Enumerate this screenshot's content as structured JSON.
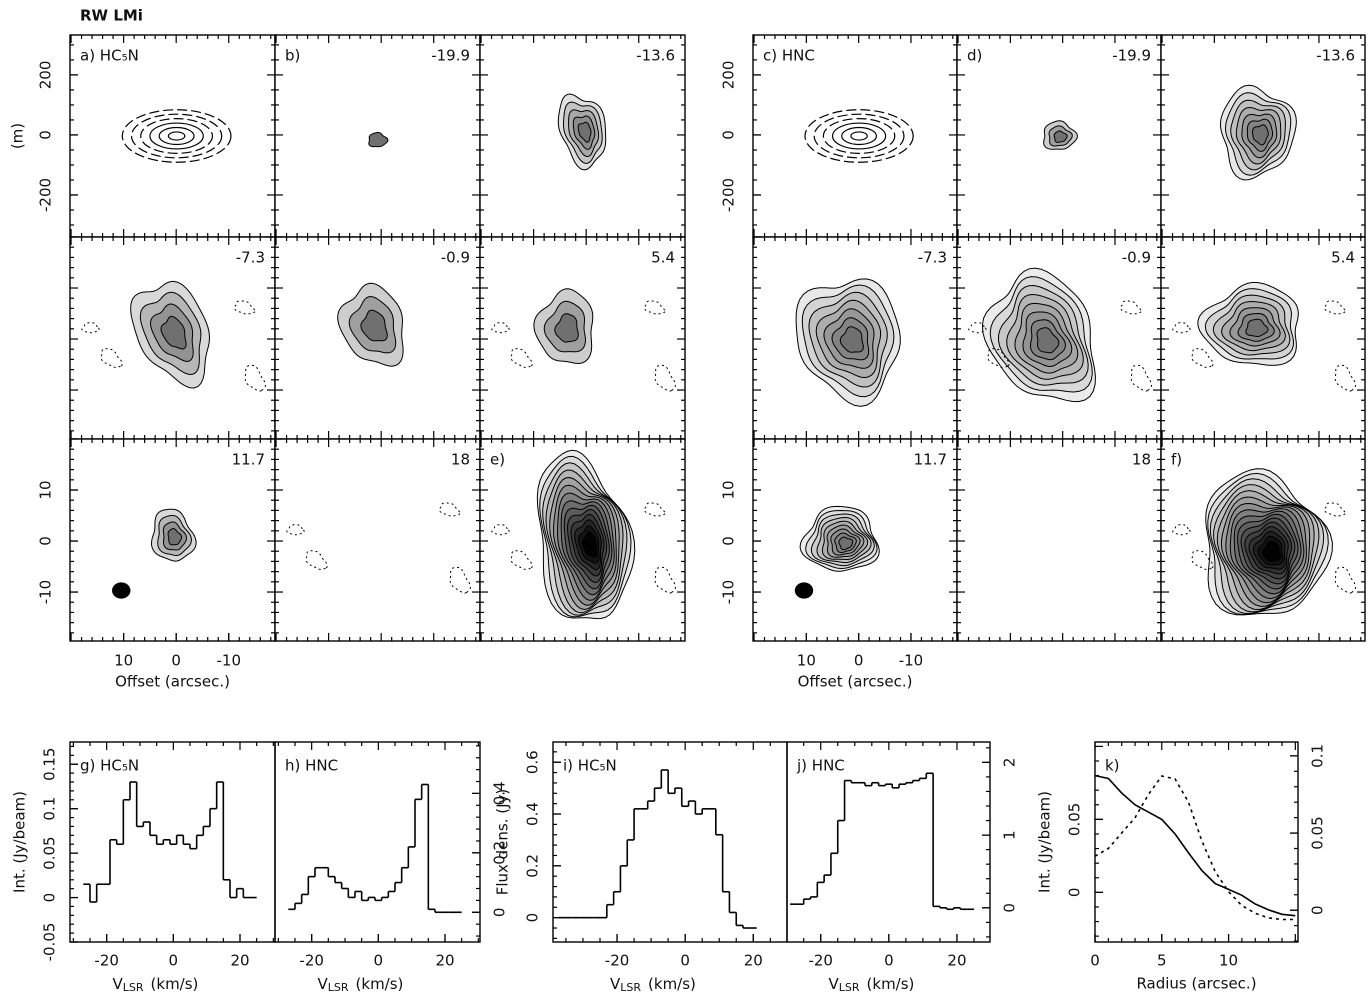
{
  "title": "RW LMi",
  "chart_data": [
    {
      "type": "channel-maps",
      "panels": [
        {
          "label": "a) HC₅N"
        },
        {
          "label": "b)",
          "velocity": -19.9
        },
        {
          "velocity": -13.6
        },
        {
          "velocity": -7.3
        },
        {
          "velocity": -0.9
        },
        {
          "velocity": 5.4
        },
        {
          "velocity": 11.7
        },
        {
          "velocity": 18
        },
        {
          "label": "e)"
        }
      ],
      "ylabel": "(m)",
      "ylim_top": [
        -340,
        333
      ],
      "yticks_top": [
        200,
        0,
        -200
      ],
      "ylim": [
        -19.6,
        20
      ],
      "yticks": [
        10,
        0,
        -10
      ],
      "xlim": [
        20.2,
        -18.8
      ],
      "xticks": [
        10,
        0,
        -10
      ],
      "xlabel": "Offset (arcsec.)"
    },
    {
      "type": "channel-maps",
      "panels": [
        {
          "label": "c) HNC"
        },
        {
          "label": "d)",
          "velocity": -19.9
        },
        {
          "velocity": -13.6
        },
        {
          "velocity": -7.3
        },
        {
          "velocity": -0.9
        },
        {
          "velocity": 5.4
        },
        {
          "velocity": 11.7
        },
        {
          "velocity": 18
        },
        {
          "label": "f)"
        }
      ],
      "ylim_top": [
        -340,
        333
      ],
      "yticks_top": [
        200,
        0,
        -200
      ],
      "ylim": [
        -19.6,
        20
      ],
      "yticks": [
        10,
        0,
        -10
      ],
      "xlim": [
        20.2,
        -18.8
      ],
      "xticks": [
        10,
        0,
        -10
      ],
      "xlabel": "Offset (arcsec.)"
    },
    {
      "type": "step",
      "label": "g) HC₅N",
      "x": [
        -26,
        -24,
        -22,
        -20,
        -18,
        -16,
        -14,
        -12,
        -10,
        -8,
        -6,
        -4,
        -2,
        0,
        2,
        4,
        6,
        8,
        10,
        12,
        14,
        16,
        18,
        20,
        22,
        24
      ],
      "values": [
        0.015,
        -0.005,
        0.015,
        0.015,
        0.065,
        0.06,
        0.11,
        0.13,
        0.08,
        0.085,
        0.07,
        0.06,
        0.065,
        0.06,
        0.07,
        0.06,
        0.055,
        0.07,
        0.08,
        0.1,
        0.13,
        0.02,
        0.0,
        0.01,
        0.0,
        0.0
      ],
      "xlim": [
        -31,
        30.5
      ],
      "xticks": [
        -20,
        0,
        20
      ],
      "ylim": [
        -0.05,
        0.175
      ],
      "yticks": [
        -0.05,
        0,
        0.05,
        0.1,
        0.15
      ],
      "ylabel": "Int. (Jy/beam)",
      "xlabel": [
        "V",
        "LSR",
        "(km/s)"
      ]
    },
    {
      "type": "step",
      "label": "h) HNC",
      "axis": "y2",
      "x": [
        -26,
        -24,
        -22,
        -20,
        -18,
        -16,
        -14,
        -12,
        -10,
        -8,
        -6,
        -4,
        -2,
        0,
        2,
        4,
        6,
        8,
        10,
        12,
        14,
        16,
        18,
        20,
        22,
        24
      ],
      "values": [
        0.01,
        0.03,
        0.06,
        0.12,
        0.15,
        0.15,
        0.12,
        0.1,
        0.08,
        0.05,
        0.07,
        0.04,
        0.05,
        0.04,
        0.05,
        0.07,
        0.1,
        0.15,
        0.22,
        0.38,
        0.43,
        0.01,
        0.0,
        0.0,
        0.0,
        0.0
      ],
      "xlim": [
        -31,
        30.5
      ],
      "xticks": [
        -20,
        0,
        20
      ],
      "y2lim": [
        -0.1,
        0.573
      ],
      "y2ticks": [
        0,
        0.2,
        0.4
      ],
      "xlabel": [
        "V",
        "LSR",
        "(km/s)"
      ]
    },
    {
      "type": "step",
      "label": "i) HC₅N",
      "x": [
        -36,
        -34,
        -32,
        -30,
        -28,
        -26,
        -24,
        -22,
        -20,
        -18,
        -16,
        -14,
        -12,
        -10,
        -8,
        -6,
        -4,
        -2,
        0,
        2,
        4,
        6,
        8,
        10,
        12,
        14,
        16,
        18,
        20
      ],
      "values": [
        0,
        0,
        0,
        0,
        0,
        0,
        0,
        0.05,
        0.1,
        0.2,
        0.3,
        0.42,
        0.42,
        0.45,
        0.5,
        0.57,
        0.48,
        0.5,
        0.43,
        0.45,
        0.4,
        0.42,
        0.42,
        0.32,
        0.1,
        0.02,
        -0.03,
        -0.04,
        -0.04
      ],
      "xlim": [
        -38.8,
        29.9
      ],
      "xticks": [
        -20,
        0,
        20
      ],
      "ylim": [
        -0.094,
        0.678
      ],
      "yticks": [
        0,
        0.2,
        0.4,
        0.6
      ],
      "ylabel": "Flux dens. (Jy)",
      "xlabel": [
        "V",
        "LSR",
        "(km/s)"
      ]
    },
    {
      "type": "step",
      "label": "j) HNC",
      "axis": "y2",
      "x": [
        -28,
        -26,
        -24,
        -22,
        -20,
        -18,
        -16,
        -14,
        -12,
        -10,
        -8,
        -6,
        -4,
        -2,
        0,
        2,
        4,
        6,
        8,
        10,
        12,
        14,
        16,
        18,
        20,
        22,
        24
      ],
      "values": [
        0.05,
        0.05,
        0.12,
        0.15,
        0.35,
        0.45,
        0.75,
        1.2,
        1.75,
        1.72,
        1.72,
        1.68,
        1.72,
        1.68,
        1.7,
        1.65,
        1.7,
        1.72,
        1.75,
        1.78,
        1.85,
        0.02,
        0.0,
        -0.02,
        0.0,
        -0.02,
        -0.02
      ],
      "xlim": [
        -29.9,
        29.7
      ],
      "xticks": [
        -20,
        0,
        20
      ],
      "y2lim": [
        -0.47,
        2.28
      ],
      "y2ticks": [
        0,
        1,
        2
      ],
      "xlabel": [
        "V",
        "LSR",
        "(km/s)"
      ]
    },
    {
      "type": "line",
      "label": "k)",
      "x": [
        0,
        1,
        2,
        3,
        4,
        5,
        6,
        7,
        8,
        9,
        10,
        11,
        12,
        13,
        14,
        15
      ],
      "series": [
        {
          "line_style": "solid",
          "values": [
            0.08,
            0.078,
            0.068,
            0.06,
            0.055,
            0.05,
            0.04,
            0.027,
            0.015,
            0.006,
            0.002,
            -0.002,
            -0.008,
            -0.012,
            -0.015,
            -0.016
          ]
        },
        {
          "line_style": "dotted",
          "axis": "y2",
          "values": [
            0.035,
            0.04,
            0.05,
            0.06,
            0.075,
            0.087,
            0.085,
            0.07,
            0.045,
            0.025,
            0.012,
            0.003,
            -0.002,
            -0.005,
            -0.006,
            -0.006
          ]
        }
      ],
      "xlim": [
        0,
        15.2
      ],
      "xticks": [
        0,
        5,
        10
      ],
      "ylim": [
        -0.034,
        0.103
      ],
      "yticks": [
        0,
        0.05
      ],
      "y2lim": [
        -0.0206,
        0.109
      ],
      "y2ticks": [
        0,
        0.05,
        0.1
      ],
      "ylabel": "Int. (Jy/beam)",
      "xlabel": "Radius (arcsec.)"
    }
  ]
}
